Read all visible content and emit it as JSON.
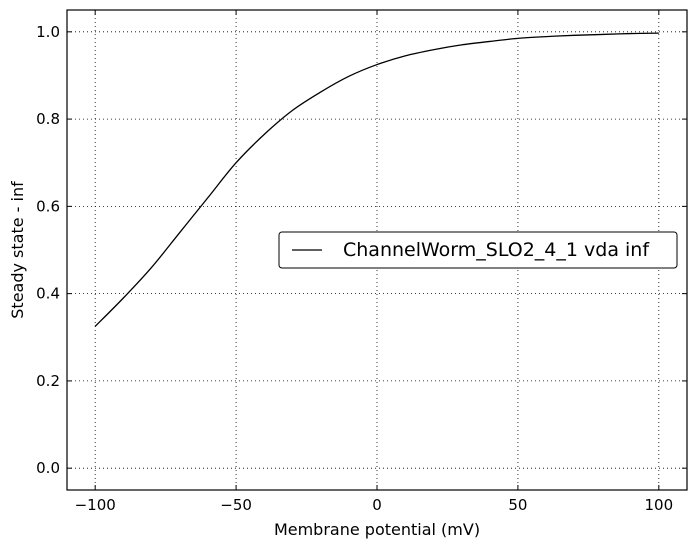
{
  "chart_data": {
    "type": "line",
    "xlabel": "Membrane potential (mV)",
    "ylabel": "Steady state - inf",
    "xlim": [
      -110,
      110
    ],
    "ylim": [
      -0.05,
      1.05
    ],
    "xticks": [
      -100,
      -50,
      0,
      50,
      100
    ],
    "xtick_labels": [
      "−100",
      "−50",
      "0",
      "50",
      "100"
    ],
    "yticks": [
      0.0,
      0.2,
      0.4,
      0.6,
      0.8,
      1.0
    ],
    "ytick_labels": [
      "0.0",
      "0.2",
      "0.4",
      "0.6",
      "0.8",
      "1.0"
    ],
    "grid": true,
    "legend_position": "center-right",
    "series": [
      {
        "name": "ChannelWorm_SLO2_4_1 vda inf",
        "color": "#000000",
        "x": [
          -100,
          -90,
          -80,
          -70,
          -60,
          -50,
          -40,
          -30,
          -20,
          -10,
          0,
          10,
          20,
          30,
          40,
          50,
          60,
          70,
          80,
          90,
          100
        ],
        "y": [
          0.325,
          0.39,
          0.46,
          0.54,
          0.62,
          0.7,
          0.765,
          0.82,
          0.862,
          0.898,
          0.925,
          0.945,
          0.959,
          0.97,
          0.978,
          0.985,
          0.989,
          0.992,
          0.994,
          0.996,
          0.997
        ]
      }
    ]
  }
}
